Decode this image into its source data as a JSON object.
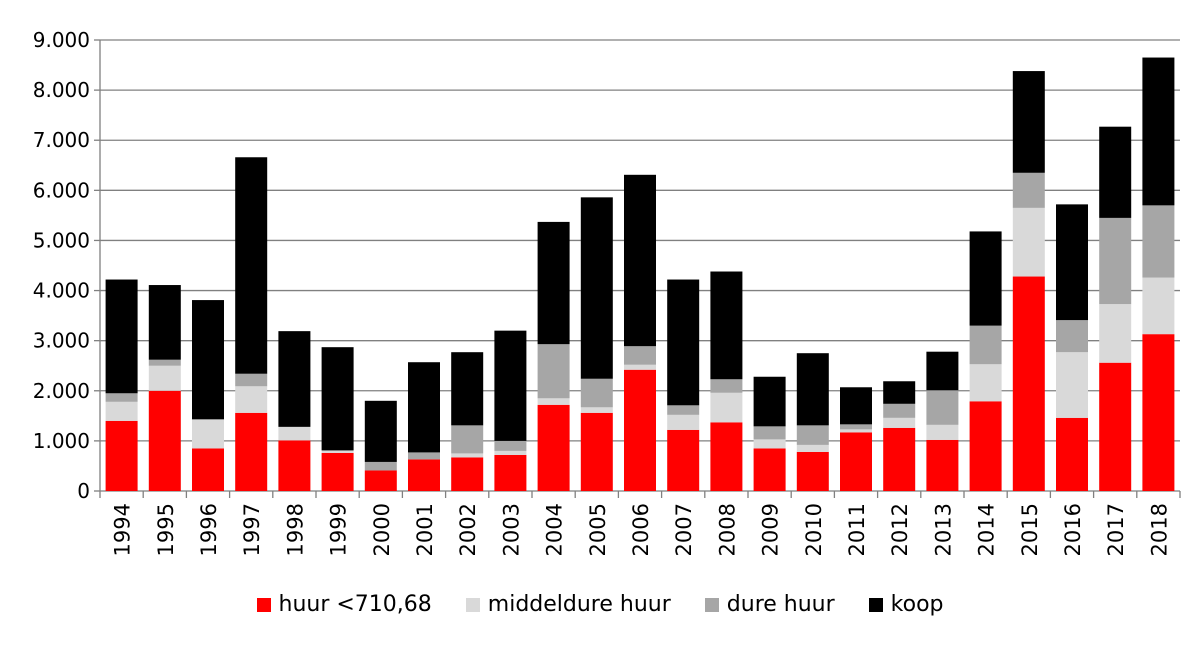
{
  "chart_data": {
    "type": "bar",
    "stacked": true,
    "title": "",
    "xlabel": "",
    "ylabel": "",
    "ylim": [
      0,
      9000
    ],
    "yticks": [
      0,
      1000,
      2000,
      3000,
      4000,
      5000,
      6000,
      7000,
      8000,
      9000
    ],
    "ytick_labels": [
      "0",
      "1.000",
      "2.000",
      "3.000",
      "4.000",
      "5.000",
      "6.000",
      "7.000",
      "8.000",
      "9.000"
    ],
    "grid": true,
    "legend_position": "bottom",
    "categories": [
      "1994",
      "1995",
      "1996",
      "1997",
      "1998",
      "1999",
      "2000",
      "2001",
      "2002",
      "2003",
      "2004",
      "2005",
      "2006",
      "2007",
      "2008",
      "2009",
      "2010",
      "2011",
      "2012",
      "2013",
      "2014",
      "2015",
      "2016",
      "2017",
      "2018"
    ],
    "series": [
      {
        "name": "huur <710,68",
        "color": "#ff0000",
        "values": [
          1400,
          2000,
          850,
          1560,
          1010,
          760,
          410,
          630,
          670,
          720,
          1720,
          1560,
          2420,
          1220,
          1370,
          850,
          780,
          1170,
          1260,
          1020,
          1790,
          4280,
          1460,
          2560,
          3130
        ]
      },
      {
        "name": "middeldure huur",
        "color": "#d9d9d9",
        "values": [
          380,
          500,
          580,
          530,
          270,
          50,
          0,
          0,
          80,
          80,
          130,
          110,
          100,
          300,
          590,
          180,
          140,
          60,
          200,
          300,
          740,
          1370,
          1310,
          1170,
          1130
        ]
      },
      {
        "name": "dure huur",
        "color": "#a6a6a6",
        "values": [
          170,
          120,
          0,
          250,
          0,
          0,
          170,
          140,
          560,
          200,
          1080,
          570,
          370,
          190,
          270,
          260,
          390,
          100,
          280,
          690,
          770,
          700,
          640,
          1720,
          1440
        ]
      },
      {
        "name": "koop",
        "color": "#000000",
        "values": [
          2270,
          1490,
          2380,
          4320,
          1910,
          2060,
          1220,
          1800,
          1460,
          2200,
          2440,
          3620,
          3420,
          2510,
          2150,
          990,
          1440,
          740,
          450,
          770,
          1880,
          2030,
          2310,
          1820,
          2950
        ]
      }
    ]
  }
}
